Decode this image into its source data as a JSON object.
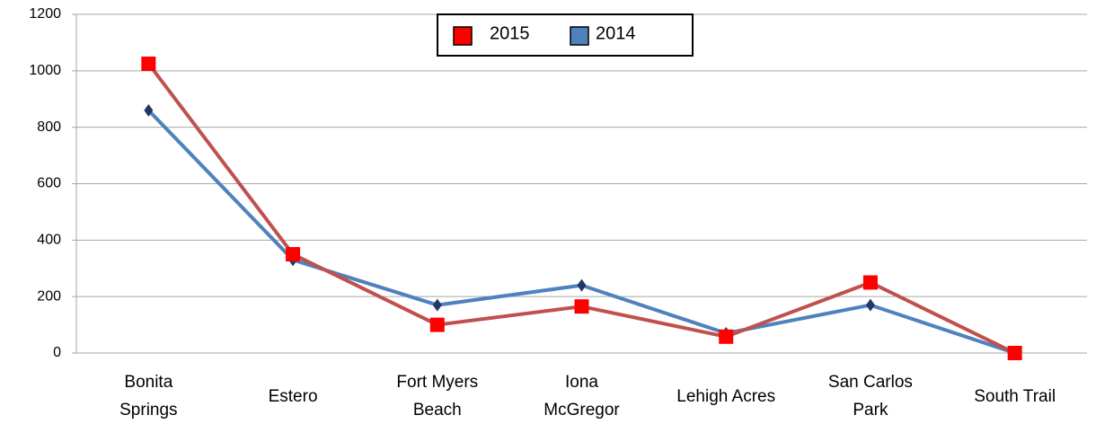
{
  "chart_data": {
    "type": "line",
    "categories": [
      "Bonita Springs",
      "Estero",
      "Fort Myers Beach",
      "Iona McGregor",
      "Lehigh Acres",
      "San Carlos Park",
      "South Trail"
    ],
    "series": [
      {
        "name": "2015",
        "color": "#c0504d",
        "marker_color": "#ff0000",
        "marker": "square",
        "values": [
          1025,
          350,
          100,
          165,
          58,
          250,
          0
        ]
      },
      {
        "name": "2014",
        "color": "#4f81bd",
        "marker_color": "#1f3864",
        "marker": "diamond",
        "values": [
          860,
          330,
          170,
          240,
          70,
          170,
          0
        ]
      }
    ],
    "ylim": [
      0,
      1200
    ],
    "yticks": [
      0,
      200,
      400,
      600,
      800,
      1000,
      1200
    ],
    "grid": true,
    "legend": "top"
  }
}
